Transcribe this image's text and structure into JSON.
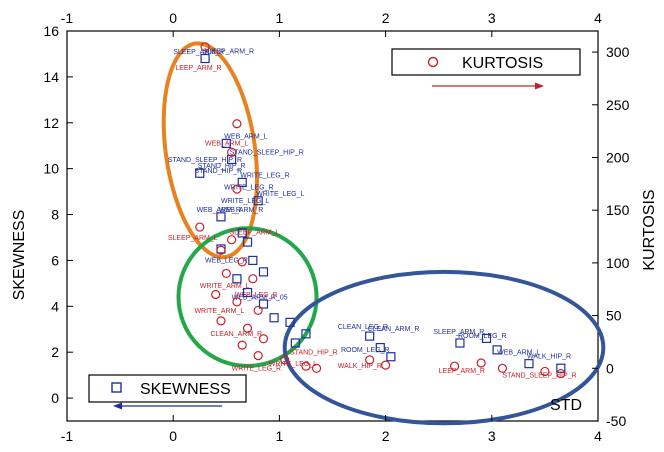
{
  "chart_data": {
    "type": "scatter",
    "xlabel": "STD",
    "ylabel_left": "SKEWNESS",
    "ylabel_right": "KURTOSIS",
    "x_range": [
      -1,
      4
    ],
    "y_left_range": [
      -1,
      16
    ],
    "y_right_range": [
      -50,
      320
    ],
    "x_ticks": [
      "-1",
      "0",
      "1",
      "2",
      "3",
      "4"
    ],
    "y_left_ticks": [
      "0",
      "2",
      "4",
      "6",
      "8",
      "10",
      "12",
      "14",
      "16"
    ],
    "y_right_ticks": [
      "-50",
      "0",
      "50",
      "100",
      "150",
      "200",
      "250",
      "300"
    ],
    "grid": false,
    "colors": {
      "skewness": "#1f2f9a",
      "kurtosis": "#c8202a",
      "orange": "#e8821e",
      "green": "#22a84a",
      "blue": "#33559a"
    },
    "legend": [
      {
        "name": "SKEWNESS",
        "marker": "square",
        "placement": "bottom-left",
        "arrow": "left"
      },
      {
        "name": "KURTOSIS",
        "marker": "circle",
        "placement": "top-right",
        "arrow": "right"
      }
    ],
    "series": [
      {
        "name": "SKEWNESS",
        "axis": "left",
        "points": [
          {
            "x": 0.3,
            "y": 14.8,
            "label": "SLEEP_ARM_R"
          },
          {
            "x": 0.5,
            "y": 11.1,
            "label": "WEB_ARM_L"
          },
          {
            "x": 0.55,
            "y": 10.4,
            "label": "STAND_SLEEP_HIP_R"
          },
          {
            "x": 0.25,
            "y": 9.8,
            "label": "STAND_HIP_R"
          },
          {
            "x": 0.65,
            "y": 9.4,
            "label": "WRITE_LEG_R"
          },
          {
            "x": 0.8,
            "y": 8.6,
            "label": "WRITE_LEG_L"
          },
          {
            "x": 0.45,
            "y": 7.9,
            "label": "WEB_ARM_R"
          },
          {
            "x": 0.65,
            "y": 7.2,
            "label": ""
          },
          {
            "x": 0.45,
            "y": 6.5,
            "label": ""
          },
          {
            "x": 0.7,
            "y": 6.8,
            "label": ""
          },
          {
            "x": 0.75,
            "y": 6.0,
            "label": ""
          },
          {
            "x": 0.85,
            "y": 5.5,
            "label": ""
          },
          {
            "x": 0.6,
            "y": 5.2,
            "label": ""
          },
          {
            "x": 0.7,
            "y": 4.6,
            "label": ""
          },
          {
            "x": 0.85,
            "y": 4.1,
            "label": ""
          },
          {
            "x": 0.95,
            "y": 3.5,
            "label": ""
          },
          {
            "x": 1.1,
            "y": 3.3,
            "label": ""
          },
          {
            "x": 1.25,
            "y": 2.8,
            "label": ""
          },
          {
            "x": 1.15,
            "y": 2.4,
            "label": ""
          },
          {
            "x": 1.85,
            "y": 2.7,
            "label": "CLEAN_ARM_R"
          },
          {
            "x": 1.95,
            "y": 2.2,
            "label": ""
          },
          {
            "x": 2.05,
            "y": 1.8,
            "label": ""
          },
          {
            "x": 2.7,
            "y": 2.4,
            "label": "ROOM_LEG_R"
          },
          {
            "x": 2.95,
            "y": 2.6,
            "label": ""
          },
          {
            "x": 3.05,
            "y": 2.1,
            "label": ""
          },
          {
            "x": 3.35,
            "y": 1.5,
            "label": "WALK_HIP_R"
          },
          {
            "x": 3.65,
            "y": 1.3,
            "label": ""
          }
        ]
      },
      {
        "name": "KURTOSIS",
        "axis": "right",
        "points": [
          {
            "x": 0.3,
            "y": 305,
            "label": ""
          },
          {
            "x": 0.6,
            "y": 232,
            "label": ""
          },
          {
            "x": 0.55,
            "y": 205,
            "label": ""
          },
          {
            "x": 0.6,
            "y": 170,
            "label": ""
          },
          {
            "x": 0.25,
            "y": 134,
            "label": ""
          },
          {
            "x": 0.55,
            "y": 122,
            "label": "SLEEP_ARM_L"
          },
          {
            "x": 0.45,
            "y": 112,
            "label": ""
          },
          {
            "x": 0.65,
            "y": 101,
            "label": ""
          },
          {
            "x": 0.5,
            "y": 90,
            "label": ""
          },
          {
            "x": 0.75,
            "y": 85,
            "label": ""
          },
          {
            "x": 0.4,
            "y": 70,
            "label": ""
          },
          {
            "x": 0.6,
            "y": 63,
            "label": "WEB_LEG_R"
          },
          {
            "x": 0.8,
            "y": 55,
            "label": ""
          },
          {
            "x": 0.45,
            "y": 45,
            "label": ""
          },
          {
            "x": 0.7,
            "y": 38,
            "label": ""
          },
          {
            "x": 0.85,
            "y": 28,
            "label": ""
          },
          {
            "x": 0.65,
            "y": 22,
            "label": ""
          },
          {
            "x": 0.8,
            "y": 12,
            "label": ""
          },
          {
            "x": 1.05,
            "y": 8,
            "label": ""
          },
          {
            "x": 1.25,
            "y": 2,
            "label": ""
          },
          {
            "x": 1.35,
            "y": 0,
            "label": ""
          },
          {
            "x": 1.85,
            "y": 8,
            "label": ""
          },
          {
            "x": 2.0,
            "y": 3,
            "label": ""
          },
          {
            "x": 2.65,
            "y": 2,
            "label": ""
          },
          {
            "x": 2.9,
            "y": 5,
            "label": ""
          },
          {
            "x": 3.1,
            "y": 0,
            "label": ""
          },
          {
            "x": 3.5,
            "y": -3,
            "label": ""
          },
          {
            "x": 3.65,
            "y": -5,
            "label": ""
          }
        ]
      }
    ],
    "cluster_ellipses": [
      {
        "color": "orange",
        "cx": 0.35,
        "cy_left": 10.8,
        "rx": 0.42,
        "ry_left": 4.7,
        "angle": -8
      },
      {
        "color": "green",
        "cx": 0.7,
        "cy_left": 4.4,
        "rx": 0.65,
        "ry_left": 3.0,
        "angle": 0
      },
      {
        "color": "blue",
        "cx": 2.55,
        "cy_left": 2.2,
        "rx": 1.5,
        "ry_left": 3.3,
        "angle": 0
      }
    ],
    "annotations": [
      "SLEEP_ARM_R",
      "LEEP_ARM_R",
      "WEB_ARM_L",
      "STAND_SLEEP_HIP_R",
      "STAND_HIP_R",
      "WRITE_LEG_R",
      "WRITE_LEG_L",
      "WEB_ARM_R",
      "SLEEP_ARM_L",
      "WEB_LEG_R",
      "WRITE_ARM_L",
      "WEB_ARM_R_05",
      "WRITE_ARM_L",
      "CLEAN_ARM_R",
      "CLEAN_LEG_R",
      "ROOM_LEG_R",
      "WALK_HIP_R"
    ]
  }
}
